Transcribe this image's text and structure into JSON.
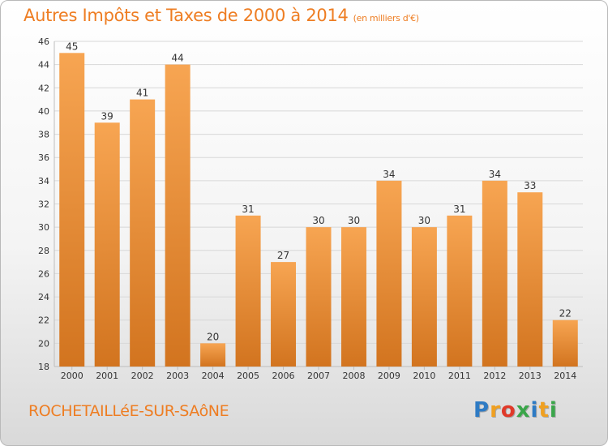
{
  "header": {
    "title": "Autres Impôts et Taxes de 2000 à 2014",
    "subtitle": "(en milliers d'€)"
  },
  "footer": {
    "commune": "ROCHETAILLéE-SUR-SAôNE",
    "logo_letters": [
      "P",
      "r",
      "o",
      "x",
      "i",
      "t",
      "i"
    ],
    "logo_colors": [
      "#2e7bc4",
      "#f0a020",
      "#e03a2a",
      "#3aa64a",
      "#2e7bc4",
      "#f0a020",
      "#3aa64a"
    ]
  },
  "colors": {
    "bar_top": "#f7a552",
    "bar_bottom": "#d2741f",
    "text": "#ee7d22",
    "grid": "#d8d8d8"
  },
  "chart_data": {
    "type": "bar",
    "title": "Autres Impôts et Taxes de 2000 à 2014",
    "subtitle": "(en milliers d'€)",
    "categories": [
      "2000",
      "2001",
      "2002",
      "2003",
      "2004",
      "2005",
      "2006",
      "2007",
      "2008",
      "2009",
      "2010",
      "2011",
      "2012",
      "2013",
      "2014"
    ],
    "values": [
      45,
      39,
      41,
      44,
      20,
      31,
      27,
      30,
      30,
      34,
      30,
      31,
      34,
      33,
      22
    ],
    "data_labels": [
      "45",
      "39",
      "41",
      "44",
      "20",
      "31",
      "27",
      "30",
      "30",
      "34",
      "30",
      "31",
      "34",
      "33",
      "22"
    ],
    "yticks": [
      "18",
      "20",
      "22",
      "24",
      "26",
      "28",
      "30",
      "32",
      "34",
      "36",
      "38",
      "40",
      "42",
      "44",
      "46"
    ],
    "ylim": [
      18,
      46
    ],
    "grid": true,
    "xlabel": "",
    "ylabel": ""
  }
}
